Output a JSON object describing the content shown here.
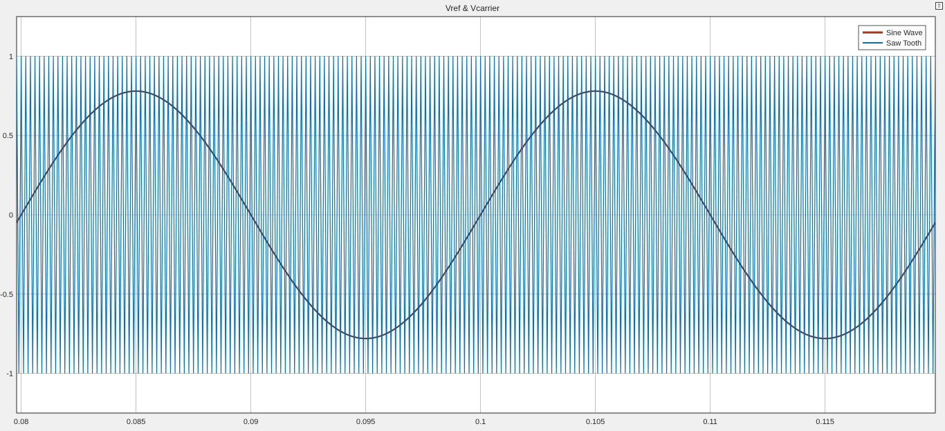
{
  "window": {
    "title": "Vref & Vcarrier",
    "undock_icon": "undock-icon"
  },
  "chart_data": {
    "type": "line",
    "title": "Vref & Vcarrier",
    "xlim": [
      0.0798,
      0.1198
    ],
    "ylim": [
      -1.25,
      1.25
    ],
    "x_ticks": [
      0.08,
      0.085,
      0.09,
      0.095,
      0.1,
      0.105,
      0.11,
      0.115
    ],
    "x_tick_labels": [
      "0.08",
      "0.085",
      "0.09",
      "0.095",
      "0.1",
      "0.105",
      "0.11",
      "0.115"
    ],
    "y_ticks": [
      1,
      0.5,
      0,
      -0.5,
      -1
    ],
    "y_tick_labels": [
      "1",
      "0.5",
      "0",
      "-0.5",
      "-1"
    ],
    "grid": true,
    "legend_position": "top-right",
    "series": [
      {
        "name": "Sine Wave",
        "color": "#a2361a",
        "kind": "sine",
        "amplitude": 0.78,
        "frequency_hz": 50,
        "phase_rad": 0
      },
      {
        "name": "Saw Tooth",
        "color": "#0072bd",
        "kind": "carrier",
        "amplitude": 1,
        "frequency_hz": 5000
      }
    ]
  }
}
